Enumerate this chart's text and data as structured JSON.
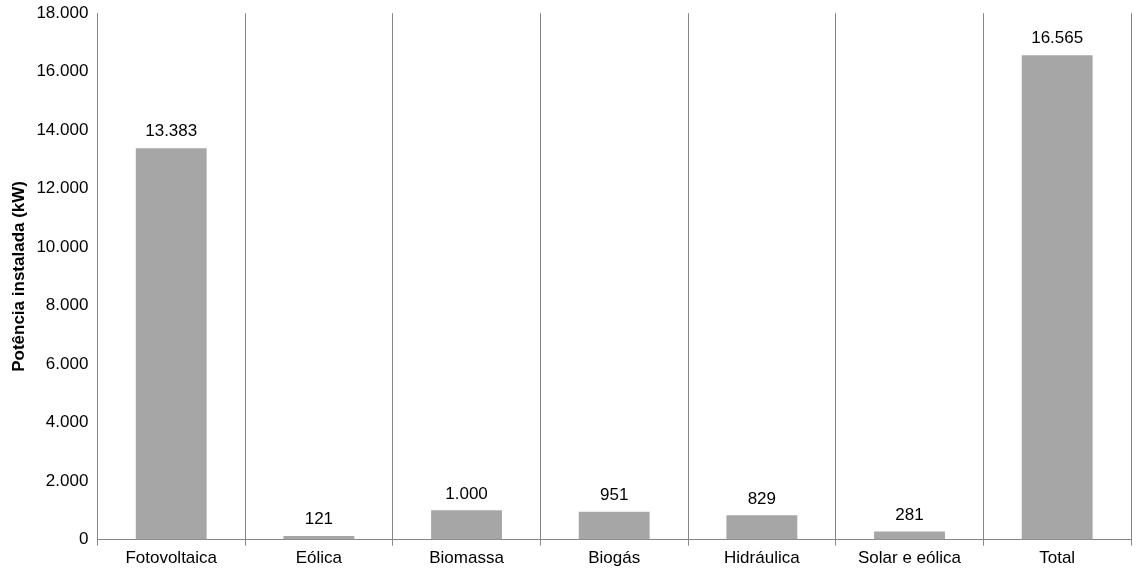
{
  "chart_data": {
    "type": "bar",
    "ylabel": "Potência instalada (kW)",
    "categories": [
      "Fotovoltaica",
      "Eólica",
      "Biomassa",
      "Biogás",
      "Hidráulica",
      "Solar e eólica",
      "Total"
    ],
    "values": [
      13383,
      121,
      1000,
      951,
      829,
      281,
      16565
    ],
    "value_labels": [
      "13.383",
      "121",
      "1.000",
      "951",
      "829",
      "281",
      "16.565"
    ],
    "color": "#a6a6a6",
    "ylim": [
      0,
      18000
    ],
    "yticks": [
      {
        "value": 0,
        "label": "0"
      },
      {
        "value": 2000,
        "label": "2.000"
      },
      {
        "value": 4000,
        "label": "4.000"
      },
      {
        "value": 6000,
        "label": "6.000"
      },
      {
        "value": 8000,
        "label": "8.000"
      },
      {
        "value": 10000,
        "label": "10.000"
      },
      {
        "value": 12000,
        "label": "12.000"
      },
      {
        "value": 14000,
        "label": "14.000"
      },
      {
        "value": 16000,
        "label": "16.000"
      },
      {
        "value": 18000,
        "label": "18.000"
      }
    ],
    "grid": "x",
    "legend": false
  }
}
